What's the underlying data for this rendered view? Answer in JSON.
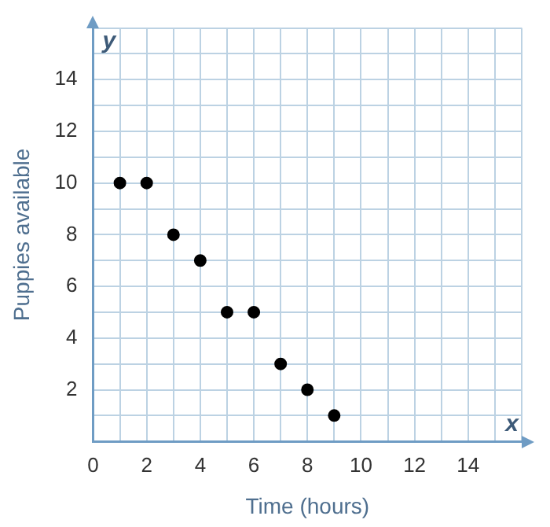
{
  "chart_data": {
    "type": "scatter",
    "xlabel": "Time (hours)",
    "ylabel": "Puppies available",
    "annotations": [
      "x",
      "y"
    ],
    "x": [
      1,
      2,
      3,
      4,
      5,
      6,
      7,
      8,
      9
    ],
    "series": [
      {
        "color": "#000000",
        "values": [
          10,
          10,
          8,
          7,
          5,
          5,
          3,
          2,
          1
        ]
      }
    ],
    "marker": "circle",
    "grid": true,
    "legend": false,
    "xlim": [
      0,
      16
    ],
    "ylim": [
      0,
      16
    ],
    "xticks": [
      {
        "value": 0,
        "label": "0"
      },
      {
        "value": 1,
        "label": null
      },
      2,
      {
        "value": 3,
        "label": null
      },
      4,
      {
        "value": 5,
        "label": null
      },
      6,
      {
        "value": 7,
        "label": null
      },
      8,
      {
        "value": 9,
        "label": null
      },
      10,
      {
        "value": 11,
        "label": null
      },
      12,
      {
        "value": 13,
        "label": null
      },
      14,
      {
        "value": 15,
        "label": null
      },
      {
        "value": 16,
        "label": null
      }
    ],
    "yticks": [
      {
        "value": 0,
        "label": null
      },
      {
        "value": 1,
        "label": null
      },
      2,
      {
        "value": 3,
        "label": null
      },
      4,
      {
        "value": 5,
        "label": null
      },
      6,
      {
        "value": 7,
        "label": null
      },
      8,
      {
        "value": 9,
        "label": null
      },
      10,
      {
        "value": 11,
        "label": null
      },
      12,
      {
        "value": 13,
        "label": null
      },
      14,
      {
        "value": 15,
        "label": null
      },
      {
        "value": 16,
        "label": null
      }
    ]
  }
}
